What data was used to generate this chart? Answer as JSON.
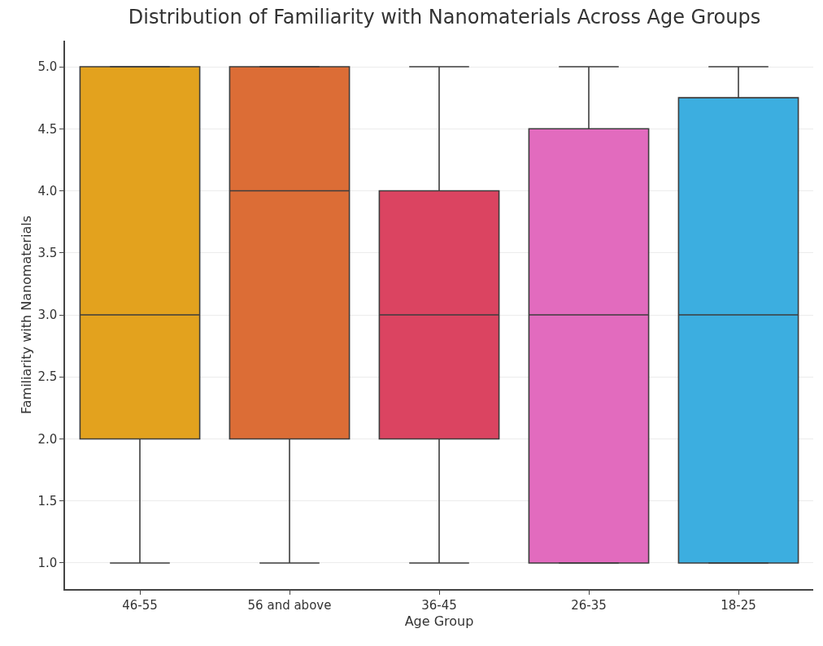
{
  "chart_data": {
    "type": "box",
    "title": "Distribution of Familiarity with Nanomaterials Across Age Groups",
    "xlabel": "Age Group",
    "ylabel": "Familiarity with Nanomaterials",
    "categories": [
      "46-55",
      "56 and above",
      "36-45",
      "26-35",
      "18-25"
    ],
    "colors": [
      "#e3a21e",
      "#dc6d36",
      "#db4461",
      "#e26bbe",
      "#3caee0"
    ],
    "boxes": [
      {
        "low": 1,
        "q1": 2,
        "median": 3,
        "q3": 5,
        "high": 5
      },
      {
        "low": 1,
        "q1": 2,
        "median": 4,
        "q3": 5,
        "high": 5
      },
      {
        "low": 1,
        "q1": 2,
        "median": 3,
        "q3": 4,
        "high": 5
      },
      {
        "low": 1,
        "q1": 1,
        "median": 3,
        "q3": 4.5,
        "high": 5
      },
      {
        "low": 1,
        "q1": 1,
        "median": 3,
        "q3": 4.75,
        "high": 5
      }
    ],
    "ylim": [
      0.79,
      5.21
    ],
    "yticks": [
      {
        "value": 1,
        "label": "1.0"
      },
      {
        "value": 1.5,
        "label": "1.5"
      },
      {
        "value": 2,
        "label": "2.0"
      },
      {
        "value": 2.5,
        "label": "2.5"
      },
      {
        "value": 3,
        "label": "3.0"
      },
      {
        "value": 3.5,
        "label": "3.5"
      },
      {
        "value": 4,
        "label": "4.0"
      },
      {
        "value": 4.5,
        "label": "4.5"
      },
      {
        "value": 5,
        "label": "5.0"
      }
    ],
    "grid": "y",
    "legend": false
  }
}
